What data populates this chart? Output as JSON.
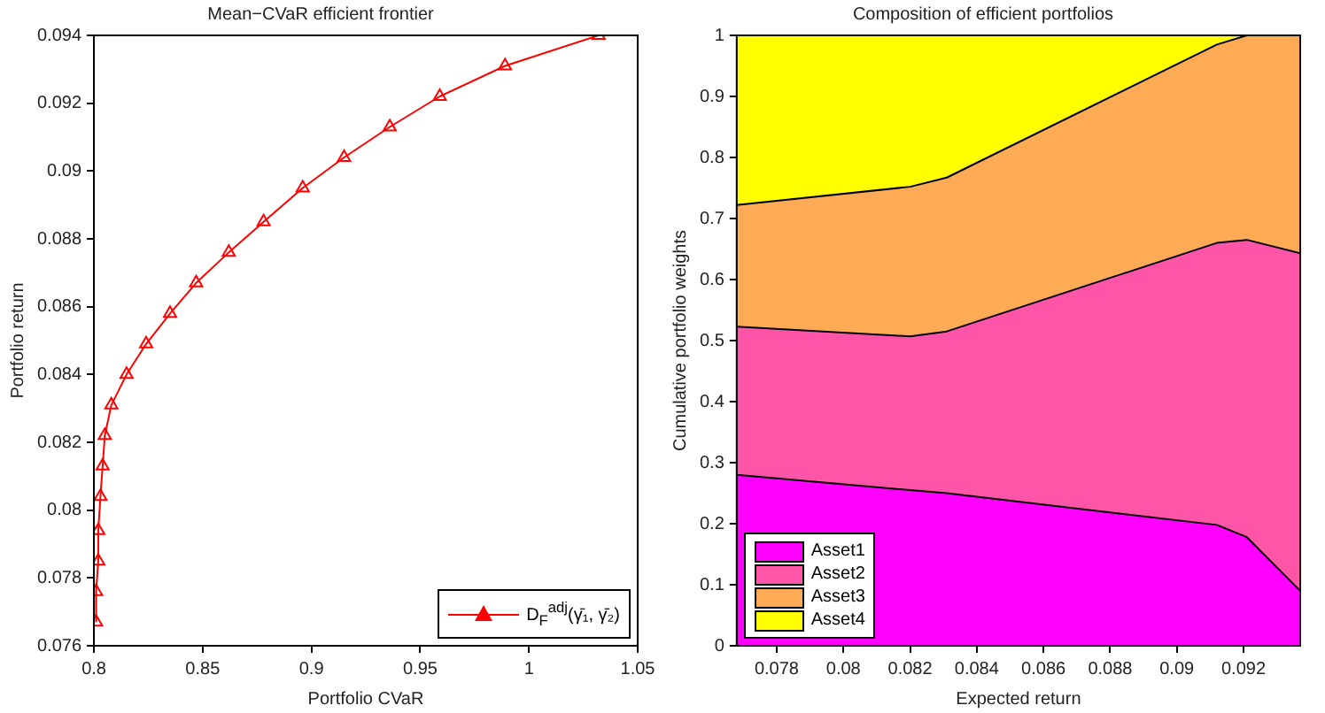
{
  "chart_data": [
    {
      "type": "line",
      "title": "Mean−CVaR efficient frontier",
      "xlabel": "Portfolio CVaR",
      "ylabel": "Portfolio return",
      "marker": "triangle",
      "legend": "bottom right",
      "grid": false,
      "xlim": [
        0.8,
        1.05
      ],
      "xticks": [
        0.8,
        0.85,
        0.9,
        0.95,
        1,
        1.05
      ],
      "ylim": [
        0.076,
        0.094
      ],
      "yticks": [
        0.076,
        0.078,
        0.08,
        0.082,
        0.084,
        0.086,
        0.088,
        0.09,
        0.092,
        0.094
      ],
      "series": [
        {
          "name": "D$_{F}$$^{adj}$(γ̄₁, γ̄₂)",
          "color": "#ff0000",
          "x": [
            0.801,
            0.801,
            0.802,
            0.802,
            0.803,
            0.804,
            0.805,
            0.808,
            0.815,
            0.824,
            0.835,
            0.847,
            0.862,
            0.878,
            0.896,
            0.915,
            0.936,
            0.959,
            0.989,
            1.032
          ],
          "values": [
            0.0767,
            0.0776,
            0.0785,
            0.0794,
            0.0804,
            0.0813,
            0.0822,
            0.0831,
            0.084,
            0.0849,
            0.0858,
            0.0867,
            0.0876,
            0.0885,
            0.0895,
            0.0904,
            0.0913,
            0.0922,
            0.0931,
            0.094
          ]
        }
      ]
    },
    {
      "type": "area",
      "stacked": true,
      "title": "Composition of efficient portfolios",
      "xlabel": "Expected return",
      "ylabel": "Cumulative portfolio weights",
      "legend": "bottom left",
      "grid": false,
      "x": [
        0.0768,
        0.082,
        0.0831,
        0.0912,
        0.0921,
        0.0937
      ],
      "xlim": [
        0.0768,
        0.0937
      ],
      "xticks": [
        0.078,
        0.08,
        0.082,
        0.084,
        0.086,
        0.088,
        0.09,
        0.092
      ],
      "ylim": [
        0,
        1
      ],
      "yticks": [
        0,
        0.1,
        0.2,
        0.3,
        0.4,
        0.5,
        0.6,
        0.7,
        0.8,
        0.9,
        1
      ],
      "series": [
        {
          "name": "Asset1",
          "color": "#ff00ff",
          "values": [
            0.28,
            0.255,
            0.25,
            0.198,
            0.178,
            0.09
          ]
        },
        {
          "name": "Asset2",
          "color": "#ff55a8",
          "values": [
            0.243,
            0.252,
            0.265,
            0.462,
            0.487,
            0.553
          ]
        },
        {
          "name": "Asset3",
          "color": "#ffaa55",
          "values": [
            0.199,
            0.245,
            0.252,
            0.325,
            0.335,
            0.357
          ]
        },
        {
          "name": "Asset4",
          "color": "#ffff00",
          "values": [
            0.278,
            0.248,
            0.233,
            0.015,
            0,
            0
          ]
        }
      ]
    }
  ]
}
